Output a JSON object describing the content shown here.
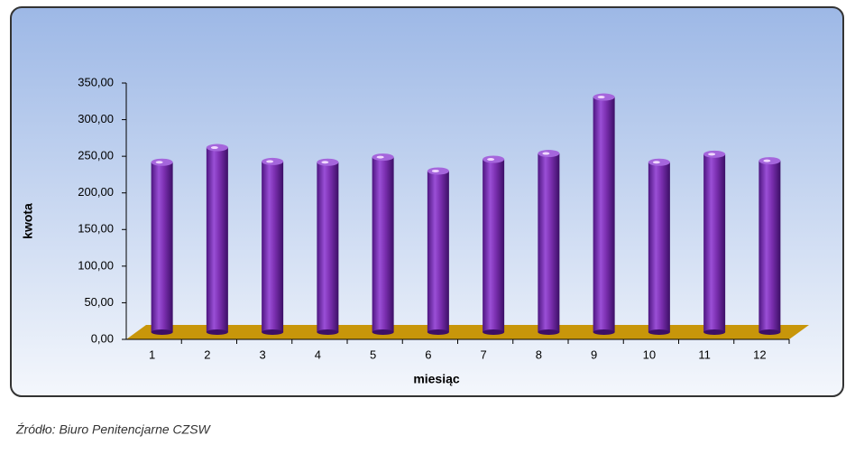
{
  "chart_data": {
    "type": "bar",
    "y_label": "kwota",
    "x_label": "miesiąc",
    "categories": [
      "1",
      "2",
      "3",
      "4",
      "5",
      "6",
      "7",
      "8",
      "9",
      "10",
      "11",
      "12"
    ],
    "values": [
      232,
      252,
      233,
      232,
      239,
      220,
      236,
      244,
      321,
      232,
      243,
      234
    ],
    "color": "#7b2fb0",
    "ylim": [
      0,
      350
    ],
    "yticks": [
      {
        "value": 0,
        "label": "0,00"
      },
      {
        "value": 50,
        "label": "50,00"
      },
      {
        "value": 100,
        "label": "100,00"
      },
      {
        "value": 150,
        "label": "150,00"
      },
      {
        "value": 200,
        "label": "200,00"
      },
      {
        "value": 250,
        "label": "250,00"
      },
      {
        "value": 300,
        "label": "300,00"
      },
      {
        "value": 350,
        "label": "350,00"
      }
    ]
  },
  "source": "Źródło: Biuro Penitencjarne CZSW"
}
